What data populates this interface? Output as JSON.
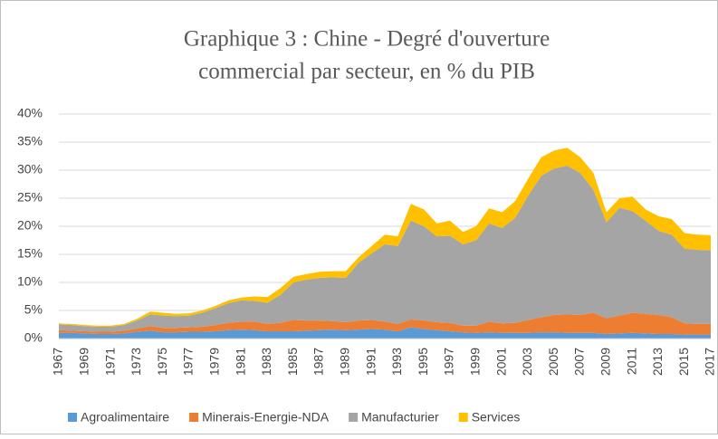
{
  "chart_data": {
    "type": "stacked_area",
    "title_lines": [
      "Graphique 3 : Chine - Degré d'ouverture",
      "commercial par secteur, en % du PIB"
    ],
    "categories": [
      "1967",
      null,
      "1969",
      null,
      "1971",
      null,
      "1973",
      null,
      "1975",
      null,
      "1977",
      null,
      "1979",
      null,
      "1981",
      null,
      "1983",
      null,
      "1985",
      null,
      "1987",
      null,
      "1989",
      null,
      "1991",
      null,
      "1993",
      null,
      "1995",
      null,
      "1997",
      null,
      "1999",
      null,
      "2001",
      null,
      "2003",
      null,
      "2005",
      null,
      "2007",
      null,
      "2009",
      null,
      "2011",
      null,
      "2013",
      null,
      "2015",
      null,
      "2017"
    ],
    "series": [
      {
        "name": "Agroalimentaire",
        "color": "#5b9bd5",
        "values": [
          1.0,
          1.0,
          0.9,
          0.8,
          0.8,
          0.9,
          1.2,
          1.4,
          1.1,
          1.1,
          1.2,
          1.2,
          1.3,
          1.5,
          1.6,
          1.5,
          1.3,
          1.3,
          1.3,
          1.4,
          1.5,
          1.6,
          1.5,
          1.6,
          1.7,
          1.6,
          1.3,
          2.0,
          1.7,
          1.5,
          1.3,
          1.1,
          1.0,
          1.1,
          1.0,
          1.0,
          1.0,
          1.1,
          1.1,
          1.0,
          1.0,
          1.0,
          0.8,
          0.9,
          1.0,
          0.9,
          0.8,
          0.8,
          0.7,
          0.7,
          0.7
        ]
      },
      {
        "name": "Minerais-Energie-NDA",
        "color": "#ed7d31",
        "values": [
          0.5,
          0.4,
          0.4,
          0.4,
          0.4,
          0.5,
          0.6,
          0.8,
          0.8,
          0.8,
          0.8,
          0.9,
          1.1,
          1.3,
          1.4,
          1.5,
          1.3,
          1.5,
          2.0,
          1.8,
          1.7,
          1.5,
          1.4,
          1.6,
          1.6,
          1.4,
          1.3,
          1.4,
          1.5,
          1.4,
          1.5,
          1.2,
          1.3,
          1.9,
          1.7,
          1.8,
          2.3,
          2.7,
          3.1,
          3.3,
          3.2,
          3.6,
          2.8,
          3.2,
          3.6,
          3.5,
          3.4,
          3.0,
          2.0,
          1.9,
          1.9
        ]
      },
      {
        "name": "Manufacturier",
        "color": "#a5a5a5",
        "values": [
          1.0,
          1.0,
          0.9,
          0.9,
          0.9,
          1.0,
          1.4,
          2.1,
          2.2,
          2.1,
          2.1,
          2.5,
          3.0,
          3.5,
          3.8,
          3.7,
          3.8,
          5.0,
          6.7,
          7.3,
          7.6,
          7.8,
          7.9,
          10.3,
          11.9,
          13.8,
          13.9,
          17.6,
          16.8,
          15.3,
          15.5,
          14.5,
          15.2,
          17.5,
          17.0,
          18.7,
          22.2,
          25.2,
          26.1,
          26.5,
          25.3,
          21.9,
          17.1,
          19.2,
          18.1,
          16.6,
          15.0,
          14.7,
          13.3,
          13.2,
          13.1
        ]
      },
      {
        "name": "Services",
        "color": "#ffc000",
        "values": [
          0.2,
          0.2,
          0.2,
          0.2,
          0.2,
          0.2,
          0.3,
          0.5,
          0.5,
          0.4,
          0.4,
          0.4,
          0.4,
          0.5,
          0.5,
          0.8,
          1.0,
          1.2,
          1.0,
          1.0,
          1.1,
          1.1,
          1.2,
          1.0,
          1.3,
          1.7,
          1.7,
          3.0,
          3.0,
          2.3,
          2.7,
          2.2,
          2.5,
          2.7,
          2.8,
          3.0,
          3.0,
          3.3,
          3.2,
          3.2,
          2.8,
          3.0,
          1.8,
          1.7,
          2.6,
          2.0,
          2.6,
          2.8,
          2.8,
          2.7,
          2.7
        ]
      }
    ],
    "ylim": [
      0,
      40
    ],
    "yticks": [
      {
        "value": 0,
        "label": "0%"
      },
      {
        "value": 5,
        "label": "5%"
      },
      {
        "value": 10,
        "label": "10%"
      },
      {
        "value": 15,
        "label": "15%"
      },
      {
        "value": 20,
        "label": "20%"
      },
      {
        "value": 25,
        "label": "25%"
      },
      {
        "value": 30,
        "label": "30%"
      },
      {
        "value": 35,
        "label": "35%"
      },
      {
        "value": 40,
        "label": "40%"
      }
    ],
    "grid": true,
    "legend": "bottom"
  }
}
